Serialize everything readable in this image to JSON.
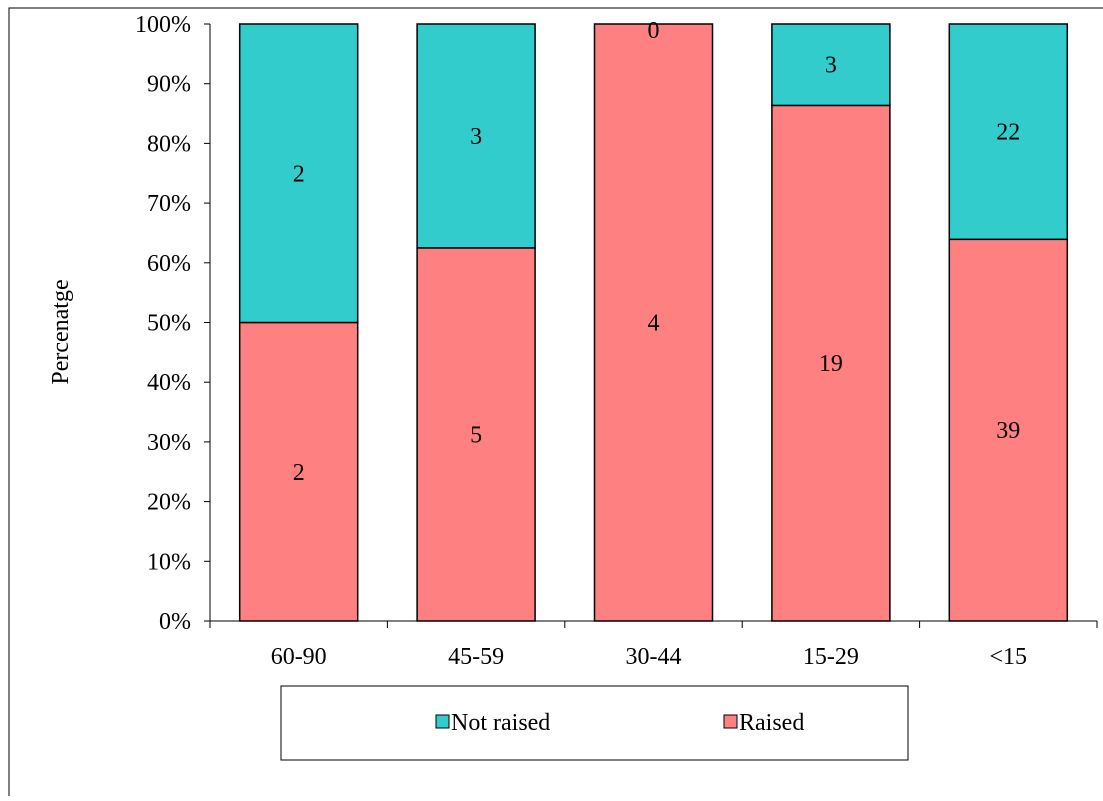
{
  "chart_data": {
    "type": "bar",
    "stacked": true,
    "percent_stacked": true,
    "categories": [
      "60-90",
      "45-59",
      "30-44",
      "15-29",
      "<15"
    ],
    "series": [
      {
        "name": "Raised",
        "values": [
          2,
          5,
          4,
          19,
          39
        ],
        "color": "#FF8080"
      },
      {
        "name": "Not raised",
        "values": [
          2,
          3,
          0,
          3,
          22
        ],
        "color": "#33CCCC"
      }
    ],
    "xlabel": "",
    "ylabel": "Percenatge",
    "ylim": [
      0,
      100
    ],
    "yticks": [
      "0%",
      "10%",
      "20%",
      "30%",
      "40%",
      "50%",
      "60%",
      "70%",
      "80%",
      "90%",
      "100%"
    ],
    "grid": false,
    "legend": {
      "placement": "bottom",
      "entries": [
        {
          "label": "Not raised",
          "color": "#33CCCC"
        },
        {
          "label": "Raised",
          "color": "#FF8080"
        }
      ]
    }
  }
}
